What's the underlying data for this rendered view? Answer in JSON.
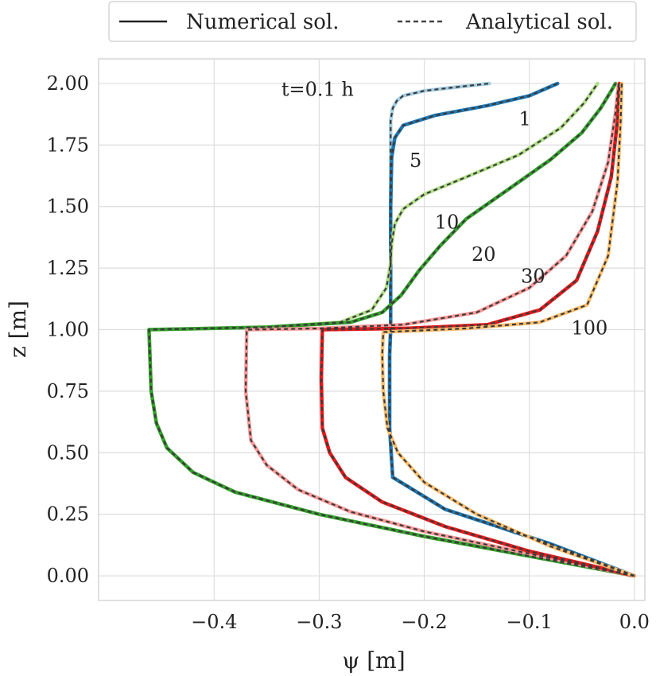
{
  "chart_data": {
    "type": "line",
    "xlabel": "ψ [m]",
    "ylabel": "z [m]",
    "xlim": [
      -0.51,
      0.01
    ],
    "ylim": [
      -0.1,
      2.1
    ],
    "xticks": [
      -0.4,
      -0.3,
      -0.2,
      -0.1,
      0.0
    ],
    "xtick_labels": [
      "−0.4",
      "−0.3",
      "−0.2",
      "−0.1",
      "0.0"
    ],
    "yticks": [
      0,
      0.25,
      0.5,
      0.75,
      1.0,
      1.25,
      1.5,
      1.75,
      2.0
    ],
    "ytick_labels": [
      "0.00",
      "0.25",
      "0.50",
      "0.75",
      "1.00",
      "1.25",
      "1.50",
      "1.75",
      "2.00"
    ],
    "grid": true,
    "legend": {
      "placement": "top-center",
      "entries": [
        {
          "label": "Numerical sol.",
          "style": "solid",
          "color": "#222222"
        },
        {
          "label": "Analytical sol.",
          "style": "dashed",
          "color": "#444444"
        }
      ]
    },
    "series": [
      {
        "label": "t=0.1 h",
        "color": "#a6cee3",
        "x": [
          0.0,
          -0.08,
          -0.18,
          -0.23,
          -0.233,
          -0.233,
          -0.232,
          -0.232,
          -0.232,
          -0.232,
          -0.23,
          -0.226,
          -0.22,
          -0.2,
          -0.17,
          -0.138
        ],
        "y": [
          0.0,
          0.13,
          0.27,
          0.4,
          0.6,
          0.9,
          1.0,
          1.3,
          1.6,
          1.85,
          1.9,
          1.93,
          1.95,
          1.97,
          1.985,
          2.0
        ]
      },
      {
        "label": "1",
        "color": "#1f78b4",
        "x": [
          0.0,
          -0.08,
          -0.18,
          -0.23,
          -0.233,
          -0.233,
          -0.232,
          -0.232,
          -0.232,
          -0.231,
          -0.228,
          -0.22,
          -0.19,
          -0.14,
          -0.1,
          -0.073
        ],
        "y": [
          0.0,
          0.13,
          0.27,
          0.4,
          0.6,
          0.9,
          1.0,
          1.3,
          1.5,
          1.7,
          1.78,
          1.83,
          1.87,
          1.91,
          1.95,
          2.0
        ]
      },
      {
        "label": "5",
        "color": "#b2df8a",
        "x": [
          0.0,
          -0.1,
          -0.2,
          -0.3,
          -0.38,
          -0.42,
          -0.445,
          -0.455,
          -0.46,
          -0.462,
          -0.35,
          -0.28,
          -0.25,
          -0.236,
          -0.232,
          -0.231,
          -0.228,
          -0.22,
          -0.2,
          -0.16,
          -0.11,
          -0.07,
          -0.048,
          -0.035
        ],
        "y": [
          0.0,
          0.08,
          0.16,
          0.25,
          0.34,
          0.42,
          0.52,
          0.62,
          0.75,
          1.0,
          1.01,
          1.03,
          1.08,
          1.17,
          1.27,
          1.35,
          1.43,
          1.49,
          1.55,
          1.62,
          1.71,
          1.82,
          1.92,
          2.0
        ]
      },
      {
        "label": "10",
        "color": "#33a02c",
        "x": [
          0.0,
          -0.1,
          -0.2,
          -0.3,
          -0.38,
          -0.42,
          -0.445,
          -0.455,
          -0.46,
          -0.462,
          -0.35,
          -0.27,
          -0.24,
          -0.222,
          -0.205,
          -0.185,
          -0.16,
          -0.12,
          -0.08,
          -0.05,
          -0.032,
          -0.022,
          -0.018
        ],
        "y": [
          0.0,
          0.08,
          0.16,
          0.25,
          0.34,
          0.42,
          0.52,
          0.62,
          0.75,
          1.0,
          1.01,
          1.03,
          1.07,
          1.14,
          1.24,
          1.34,
          1.45,
          1.57,
          1.69,
          1.8,
          1.9,
          1.97,
          2.0
        ]
      },
      {
        "label": "20",
        "color": "#fb9a99",
        "x": [
          0.0,
          -0.1,
          -0.2,
          -0.27,
          -0.32,
          -0.35,
          -0.365,
          -0.37,
          -0.369,
          -0.3,
          -0.22,
          -0.15,
          -0.1,
          -0.065,
          -0.04,
          -0.025,
          -0.018,
          -0.015
        ],
        "y": [
          0.0,
          0.09,
          0.18,
          0.26,
          0.35,
          0.45,
          0.55,
          0.75,
          1.0,
          1.005,
          1.02,
          1.07,
          1.17,
          1.3,
          1.48,
          1.68,
          1.88,
          2.0
        ]
      },
      {
        "label": "30",
        "color": "#e31a1c",
        "x": [
          0.0,
          -0.1,
          -0.18,
          -0.24,
          -0.275,
          -0.29,
          -0.297,
          -0.298,
          -0.297,
          -0.22,
          -0.14,
          -0.09,
          -0.055,
          -0.035,
          -0.022,
          -0.016,
          -0.014
        ],
        "y": [
          0.0,
          0.1,
          0.2,
          0.3,
          0.4,
          0.5,
          0.6,
          0.8,
          1.0,
          1.005,
          1.02,
          1.08,
          1.2,
          1.4,
          1.62,
          1.85,
          2.0
        ]
      },
      {
        "label": "100",
        "color": "#fdbf6f",
        "x": [
          0.0,
          -0.08,
          -0.15,
          -0.2,
          -0.225,
          -0.235,
          -0.239,
          -0.24,
          -0.239,
          -0.16,
          -0.09,
          -0.045,
          -0.025,
          -0.016,
          -0.013,
          -0.012
        ],
        "y": [
          0.0,
          0.12,
          0.25,
          0.38,
          0.5,
          0.6,
          0.75,
          0.9,
          0.99,
          1.005,
          1.03,
          1.1,
          1.3,
          1.6,
          1.85,
          2.0
        ]
      }
    ],
    "annotations": [
      {
        "text": "t=0.1 h",
        "x": -0.336,
        "y": 1.95
      },
      {
        "text": "1",
        "x": -0.11,
        "y": 1.83
      },
      {
        "text": "5",
        "x": -0.214,
        "y": 1.66
      },
      {
        "text": "10",
        "x": -0.19,
        "y": 1.41
      },
      {
        "text": "20",
        "x": -0.155,
        "y": 1.28
      },
      {
        "text": "30",
        "x": -0.108,
        "y": 1.19
      },
      {
        "text": "100",
        "x": -0.06,
        "y": 0.98
      }
    ]
  }
}
